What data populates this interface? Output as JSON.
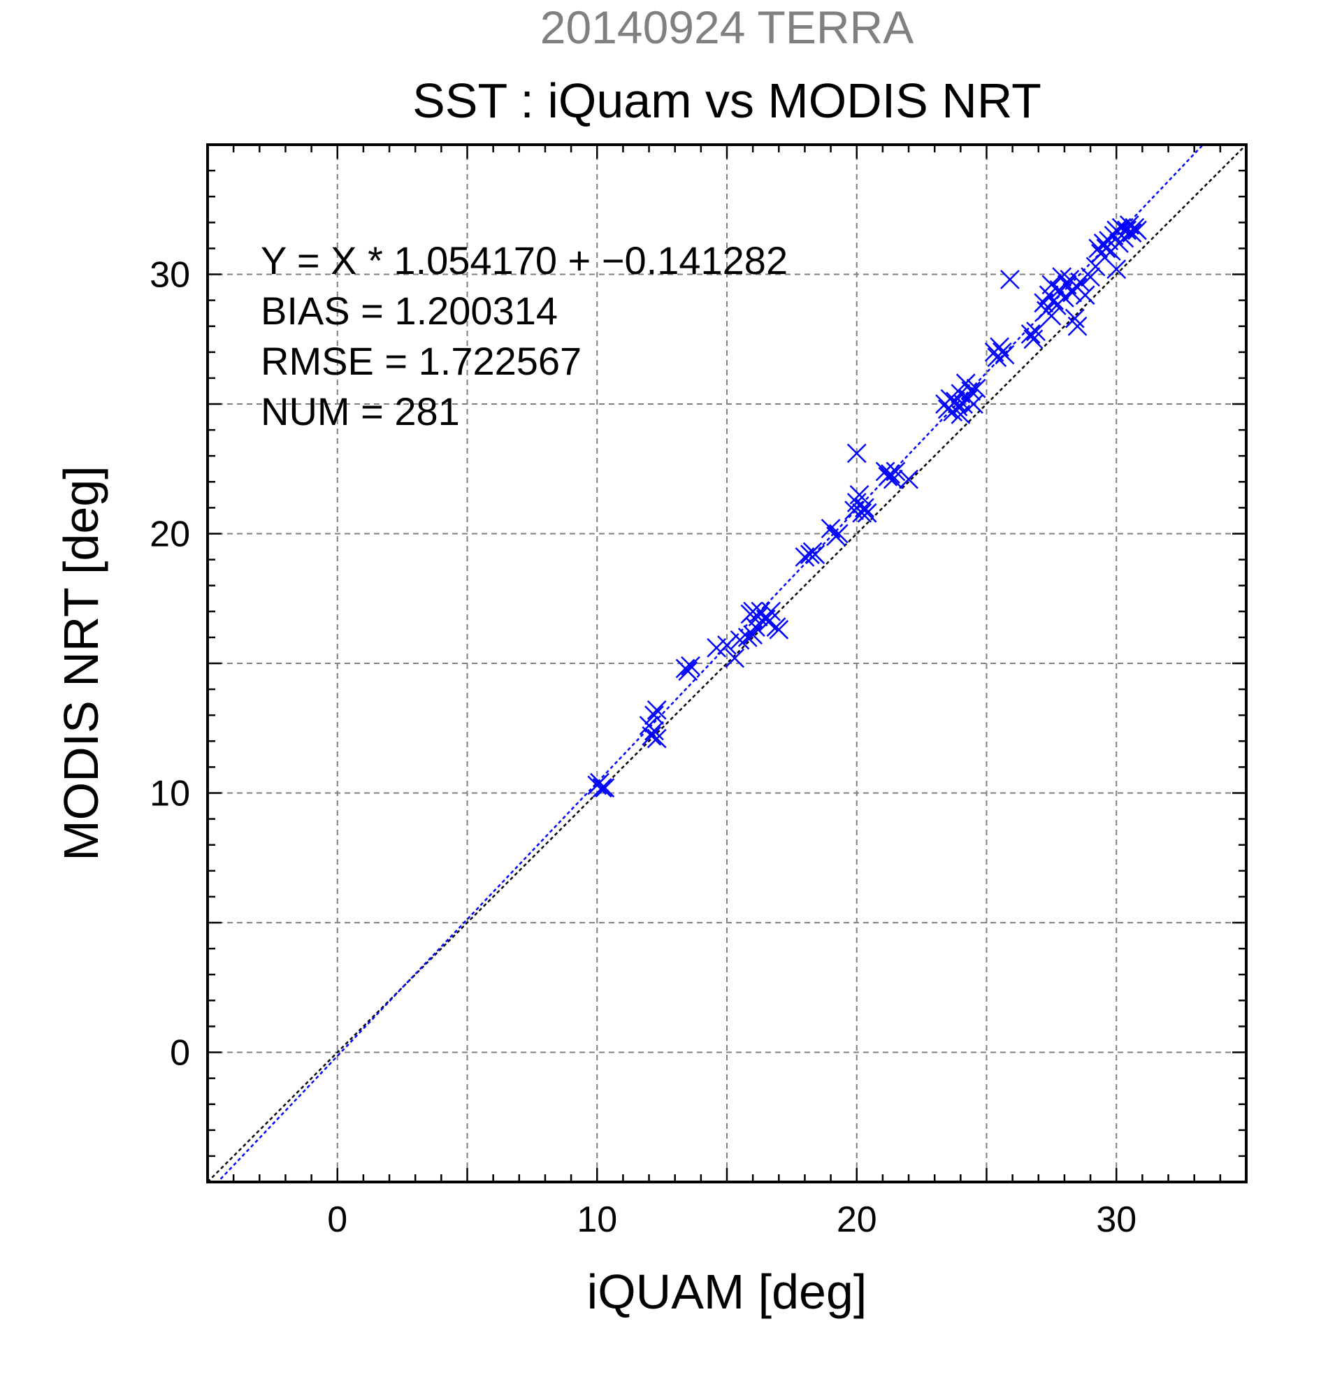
{
  "chart_data": {
    "type": "scatter",
    "supertitle": "20140924 TERRA",
    "title": "SST : iQuam vs MODIS NRT",
    "xlabel": "iQUAM [deg]",
    "ylabel": "MODIS NRT [deg]",
    "xlim": [
      -5,
      35
    ],
    "ylim": [
      -5,
      35
    ],
    "xticks": [
      0,
      10,
      20,
      30
    ],
    "yticks": [
      0,
      10,
      20,
      30
    ],
    "grid": true,
    "stats_lines": [
      "Y = X * 1.054170 + −0.141282",
      "BIAS = 1.200314",
      "RMSE = 1.722567",
      "NUM = 281"
    ],
    "regression": {
      "slope": 1.05417,
      "intercept": -0.141282,
      "color": "#0000ff"
    },
    "identity_line": {
      "color": "#000000"
    },
    "marker": "x",
    "marker_color": "#0000ff",
    "series": [
      {
        "points": [
          [
            10.0,
            10.3
          ],
          [
            10.2,
            10.2
          ],
          [
            10.1,
            10.4
          ],
          [
            10.3,
            10.2
          ],
          [
            12.0,
            12.6
          ],
          [
            12.1,
            12.2
          ],
          [
            12.2,
            13.0
          ],
          [
            12.3,
            12.1
          ],
          [
            12.2,
            12.4
          ],
          [
            12.3,
            13.2
          ],
          [
            13.4,
            14.8
          ],
          [
            13.5,
            14.7
          ],
          [
            13.6,
            14.9
          ],
          [
            14.6,
            15.6
          ],
          [
            15.0,
            15.7
          ],
          [
            15.3,
            15.2
          ],
          [
            15.5,
            15.9
          ],
          [
            15.8,
            16.0
          ],
          [
            15.9,
            16.9
          ],
          [
            16.0,
            16.1
          ],
          [
            16.0,
            17.0
          ],
          [
            16.1,
            16.4
          ],
          [
            16.2,
            16.8
          ],
          [
            16.3,
            17.0
          ],
          [
            16.5,
            16.7
          ],
          [
            16.6,
            16.6
          ],
          [
            16.9,
            16.4
          ],
          [
            17.0,
            16.3
          ],
          [
            16.7,
            17.0
          ],
          [
            18.0,
            19.1
          ],
          [
            18.2,
            19.2
          ],
          [
            18.3,
            19.3
          ],
          [
            18.4,
            19.2
          ],
          [
            19.0,
            20.2
          ],
          [
            19.2,
            19.9
          ],
          [
            19.3,
            20.0
          ],
          [
            19.9,
            20.9
          ],
          [
            20.0,
            23.1
          ],
          [
            20.0,
            21.2
          ],
          [
            20.1,
            21.5
          ],
          [
            20.2,
            20.8
          ],
          [
            20.3,
            21.0
          ],
          [
            20.4,
            20.8
          ],
          [
            21.1,
            22.4
          ],
          [
            21.2,
            22.2
          ],
          [
            21.3,
            22.3
          ],
          [
            21.4,
            22.1
          ],
          [
            21.5,
            22.4
          ],
          [
            22.0,
            22.1
          ],
          [
            23.4,
            25.0
          ],
          [
            23.5,
            24.8
          ],
          [
            23.6,
            25.2
          ],
          [
            23.7,
            24.7
          ],
          [
            23.8,
            25.1
          ],
          [
            23.9,
            24.9
          ],
          [
            24.0,
            25.4
          ],
          [
            24.0,
            24.6
          ],
          [
            24.1,
            25.0
          ],
          [
            24.2,
            25.8
          ],
          [
            24.3,
            25.2
          ],
          [
            24.4,
            25.5
          ],
          [
            24.5,
            25.0
          ],
          [
            24.6,
            25.6
          ],
          [
            25.3,
            27.0
          ],
          [
            25.4,
            26.8
          ],
          [
            25.5,
            27.2
          ],
          [
            25.6,
            27.0
          ],
          [
            25.7,
            26.9
          ],
          [
            25.9,
            29.8
          ],
          [
            26.7,
            27.7
          ],
          [
            26.8,
            27.5
          ],
          [
            26.9,
            27.8
          ],
          [
            27.2,
            28.9
          ],
          [
            27.3,
            28.6
          ],
          [
            27.4,
            29.2
          ],
          [
            27.5,
            28.4
          ],
          [
            27.5,
            29.6
          ],
          [
            27.6,
            29.0
          ],
          [
            27.7,
            28.8
          ],
          [
            27.8,
            29.4
          ],
          [
            27.9,
            29.9
          ],
          [
            28.0,
            29.1
          ],
          [
            28.1,
            29.6
          ],
          [
            28.2,
            29.8
          ],
          [
            28.3,
            29.3
          ],
          [
            28.4,
            28.3
          ],
          [
            28.5,
            28.0
          ],
          [
            28.5,
            29.5
          ],
          [
            28.6,
            29.7
          ],
          [
            28.8,
            29.2
          ],
          [
            29.0,
            29.9
          ],
          [
            29.2,
            30.3
          ],
          [
            29.3,
            31.0
          ],
          [
            29.4,
            30.8
          ],
          [
            29.5,
            31.2
          ],
          [
            29.6,
            31.0
          ],
          [
            29.7,
            31.3
          ],
          [
            29.8,
            30.9
          ],
          [
            29.9,
            31.5
          ],
          [
            30.0,
            30.2
          ],
          [
            30.0,
            31.7
          ],
          [
            30.1,
            31.2
          ],
          [
            30.2,
            31.8
          ],
          [
            30.3,
            31.4
          ],
          [
            30.4,
            31.7
          ],
          [
            30.5,
            31.9
          ],
          [
            30.6,
            31.6
          ],
          [
            30.7,
            31.8
          ],
          [
            30.8,
            31.7
          ]
        ]
      }
    ]
  }
}
